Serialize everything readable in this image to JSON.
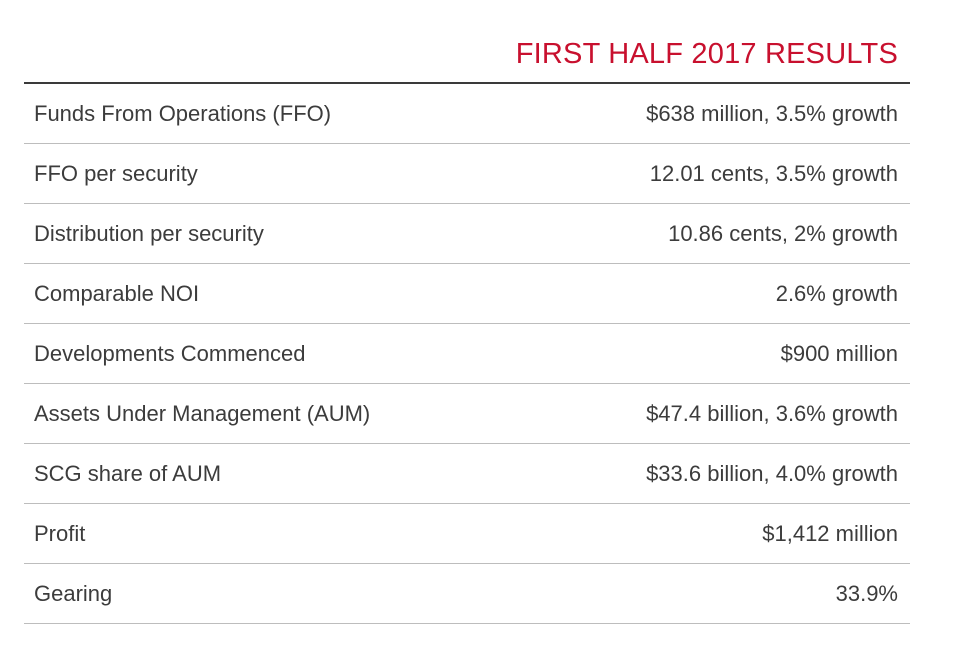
{
  "table": {
    "title": "FIRST HALF 2017 RESULTS",
    "rows": [
      {
        "metric": "Funds From Operations (FFO)",
        "value": "$638 million, 3.5% growth"
      },
      {
        "metric": "FFO per security",
        "value": "12.01 cents, 3.5% growth"
      },
      {
        "metric": "Distribution per security",
        "value": "10.86 cents, 2% growth"
      },
      {
        "metric": "Comparable NOI",
        "value": "2.6% growth"
      },
      {
        "metric": "Developments Commenced",
        "value": "$900 million"
      },
      {
        "metric": "Assets Under Management (AUM)",
        "value": "$47.4 billion, 3.6% growth"
      },
      {
        "metric": "SCG share of AUM",
        "value": "$33.6 billion, 4.0% growth"
      },
      {
        "metric": "Profit",
        "value": "$1,412 million"
      },
      {
        "metric": "Gearing",
        "value": "33.9%"
      }
    ]
  },
  "colors": {
    "title": "#c8102e",
    "text": "#3c3c3c",
    "rule_heavy": "#3a3a3a",
    "rule_light": "#bdbdbd"
  }
}
